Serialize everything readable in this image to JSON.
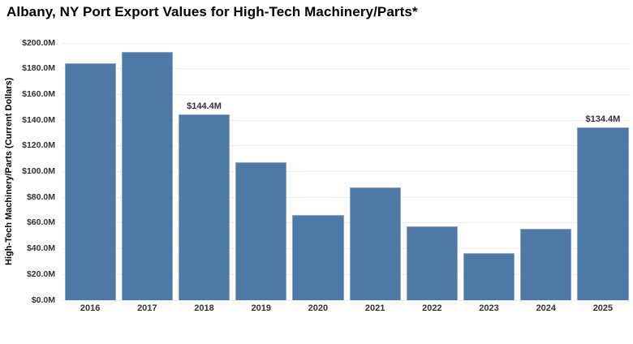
{
  "title": "Albany, NY Port Export Values for High-Tech Machinery/Parts*",
  "colors": {
    "bar": "#4e79a7",
    "grid": "#eeeeee",
    "tick_text": "#333333",
    "title_text": "#000000",
    "background": "#ffffff"
  },
  "chart_data": {
    "type": "bar",
    "title": "Albany, NY Port Export Values for High-Tech Machinery/Parts*",
    "xlabel": "",
    "ylabel": "High-Tech Machinery/Parts (Current Dollars)",
    "categories": [
      "2016",
      "2017",
      "2018",
      "2019",
      "2020",
      "2021",
      "2022",
      "2023",
      "2024",
      "2025"
    ],
    "values": [
      184.5,
      193.1,
      144.4,
      107.4,
      66.5,
      87.8,
      57.3,
      36.4,
      55.6,
      134.4
    ],
    "values_unit": "Million USD",
    "bar_labels": [
      "",
      "",
      "$144.4M",
      "",
      "",
      "",
      "",
      "",
      "",
      "$134.4M"
    ],
    "ylim": [
      0,
      200
    ],
    "ytick_step": 20,
    "ytick_labels": [
      "$0.0M",
      "$20.0M",
      "$40.0M",
      "$60.0M",
      "$80.0M",
      "$100.0M",
      "$120.0M",
      "$140.0M",
      "$160.0M",
      "$180.0M",
      "$200.0M"
    ],
    "grid": "horizontal",
    "legend": "none"
  }
}
